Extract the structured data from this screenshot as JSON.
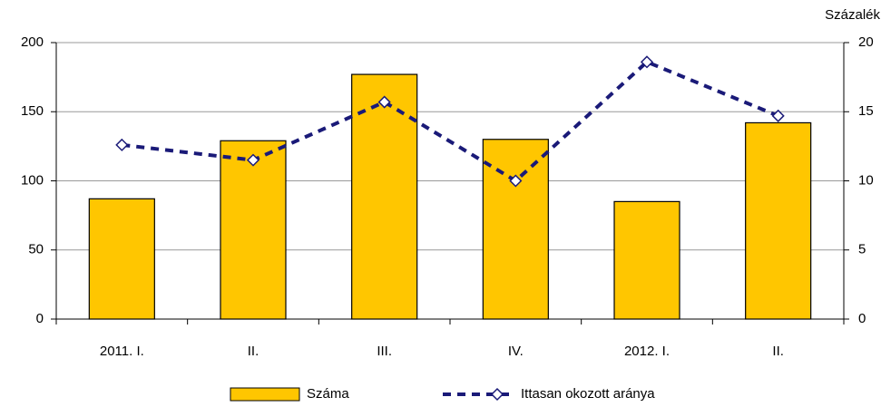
{
  "chart_data": {
    "type": "bar_line",
    "y2_label": "Százalék",
    "categories": [
      "2011. I.",
      "II.",
      "III.",
      "IV.",
      "2012. I.",
      "II."
    ],
    "series": [
      {
        "name": "Száma",
        "type": "bar",
        "color": "#ffc600",
        "values": [
          87,
          129,
          177,
          130,
          85,
          142
        ]
      },
      {
        "name": "Ittasan okozott aránya",
        "type": "line",
        "axis": "y2",
        "color": "#1a1a78",
        "values": [
          12.6,
          11.5,
          15.7,
          10.0,
          18.6,
          14.7
        ]
      }
    ],
    "ylim": [
      0,
      200
    ],
    "yticks": [
      0,
      50,
      100,
      150,
      200
    ],
    "y2lim": [
      0,
      20
    ],
    "y2ticks": [
      0,
      5,
      10,
      15,
      20
    ],
    "grid": true,
    "legend": "bottom"
  }
}
